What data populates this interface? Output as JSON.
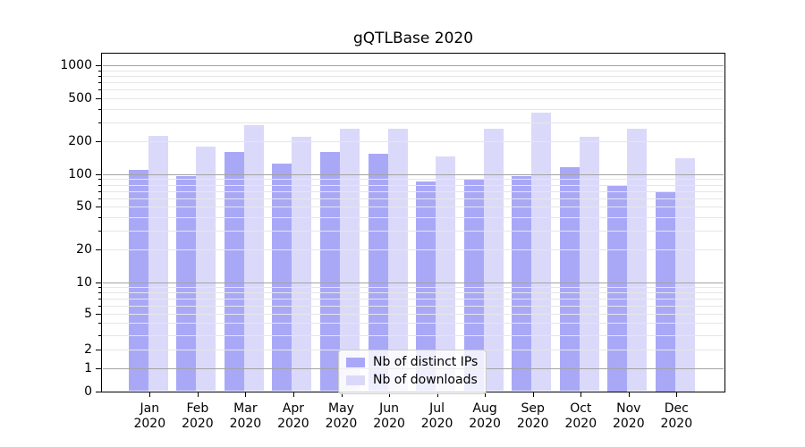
{
  "figure": {
    "background": "#ffffff",
    "text_color": "#000000"
  },
  "chart_data": {
    "type": "bar",
    "title": "gQTLBase 2020",
    "categories": [
      "Jan 2020",
      "Feb 2020",
      "Mar 2020",
      "Apr 2020",
      "May 2020",
      "Jun 2020",
      "Jul 2020",
      "Aug 2020",
      "Sep 2020",
      "Oct 2020",
      "Nov 2020",
      "Dec 2020"
    ],
    "series": [
      {
        "name": "Nb of distinct IPs",
        "color": "#a9a8f7",
        "values": [
          110,
          95,
          160,
          125,
          160,
          155,
          85,
          90,
          95,
          115,
          80,
          70
        ]
      },
      {
        "name": "Nb of downloads",
        "color": "#dbd9fa",
        "values": [
          225,
          180,
          280,
          220,
          260,
          260,
          145,
          260,
          370,
          220,
          260,
          140
        ]
      }
    ],
    "xlabel": "",
    "ylabel": "",
    "y_axis": {
      "scale": "asinh",
      "ticks": [
        0,
        1,
        2,
        5,
        10,
        20,
        50,
        100,
        200,
        500,
        1000
      ],
      "ylim": [
        0,
        1290
      ]
    },
    "grid": {
      "enabled": true,
      "major_color": "#a3a3a3",
      "minor_color": "#e6e6e6"
    },
    "legend": {
      "position": "bottom-center",
      "labels": [
        "Nb of distinct IPs",
        "Nb of downloads"
      ]
    }
  }
}
